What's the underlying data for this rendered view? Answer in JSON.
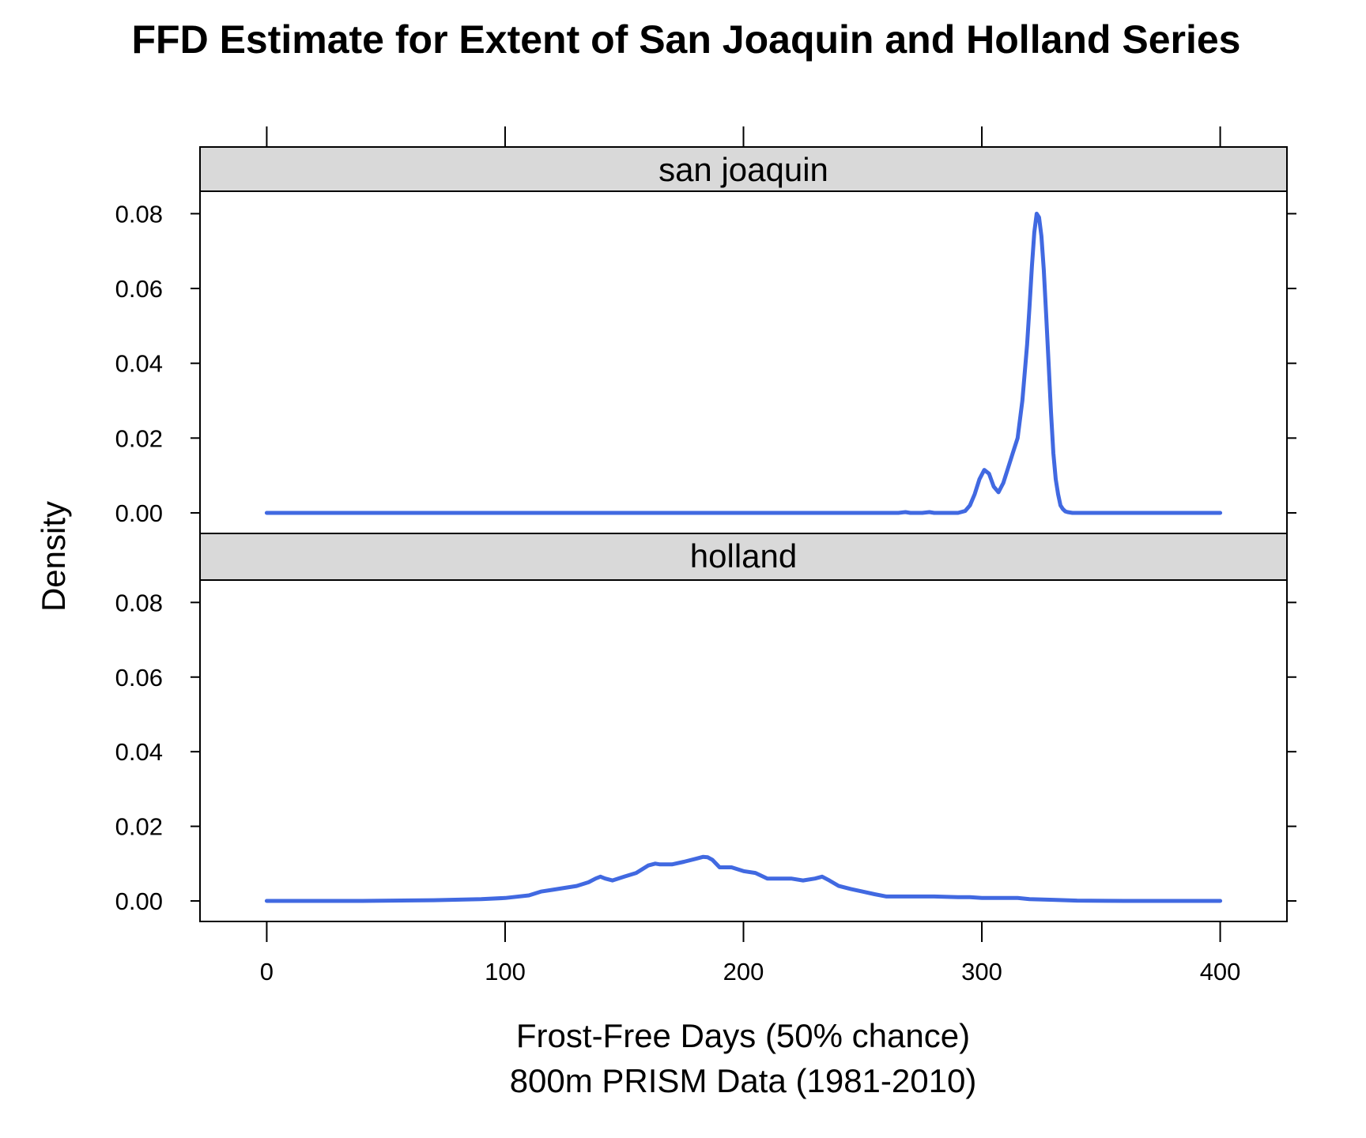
{
  "chart_data": {
    "type": "line",
    "title": "FFD Estimate for Extent of San Joaquin and Holland Series",
    "xlabel_lines": [
      "Frost-Free Days (50% chance)",
      "800m PRISM Data (1981-2010)"
    ],
    "ylabel": "Density",
    "xlim": [
      -28,
      428
    ],
    "ylim": [
      -0.0055,
      0.086
    ],
    "x_ticks": [
      0,
      100,
      200,
      300,
      400
    ],
    "x_tick_labels": [
      "0",
      "100",
      "200",
      "300",
      "400"
    ],
    "y_ticks": [
      0,
      0.02,
      0.04,
      0.06,
      0.08
    ],
    "y_tick_labels": [
      "0.00",
      "0.02",
      "0.04",
      "0.06",
      "0.08"
    ],
    "grid": false,
    "legend": "none",
    "strip_color": "#d9d9d9",
    "line_color": "#4169e1",
    "panels": [
      {
        "name": "san joaquin",
        "x": [
          0,
          50,
          100,
          150,
          200,
          250,
          265,
          268,
          270,
          275,
          278,
          280,
          285,
          290,
          293,
          295,
          297,
          299,
          301,
          303,
          305,
          307,
          309,
          311,
          313,
          315,
          317,
          319,
          320,
          321,
          322,
          323,
          324,
          325,
          326,
          327,
          328,
          329,
          330,
          331,
          332,
          333,
          334,
          335,
          336,
          338,
          340,
          345,
          360,
          400
        ],
        "y": [
          0,
          0,
          0,
          0,
          0,
          0,
          0,
          0.0002,
          0,
          0,
          0.0002,
          0,
          0,
          0,
          0.0005,
          0.002,
          0.005,
          0.009,
          0.0115,
          0.0105,
          0.007,
          0.0055,
          0.008,
          0.012,
          0.016,
          0.02,
          0.03,
          0.045,
          0.055,
          0.066,
          0.075,
          0.08,
          0.079,
          0.074,
          0.065,
          0.053,
          0.04,
          0.027,
          0.016,
          0.009,
          0.005,
          0.002,
          0.001,
          0.0004,
          0.0002,
          0,
          0,
          0,
          0,
          0
        ]
      },
      {
        "name": "holland",
        "x": [
          0,
          40,
          70,
          90,
          100,
          110,
          115,
          120,
          125,
          130,
          135,
          138,
          140,
          142,
          145,
          150,
          155,
          160,
          163,
          165,
          170,
          175,
          180,
          183,
          185,
          187,
          190,
          195,
          200,
          205,
          210,
          215,
          220,
          225,
          230,
          233,
          236,
          240,
          245,
          250,
          255,
          260,
          265,
          270,
          280,
          290,
          295,
          300,
          310,
          315,
          320,
          330,
          340,
          360,
          380,
          400
        ],
        "y": [
          0,
          0,
          0.0002,
          0.0005,
          0.0008,
          0.0015,
          0.0025,
          0.003,
          0.0035,
          0.004,
          0.005,
          0.006,
          0.0065,
          0.006,
          0.0055,
          0.0065,
          0.0075,
          0.0095,
          0.01,
          0.0098,
          0.0098,
          0.0105,
          0.0113,
          0.0118,
          0.0117,
          0.011,
          0.009,
          0.009,
          0.008,
          0.0075,
          0.006,
          0.006,
          0.006,
          0.0055,
          0.006,
          0.0065,
          0.0055,
          0.004,
          0.0032,
          0.0025,
          0.0018,
          0.0012,
          0.0012,
          0.0012,
          0.0012,
          0.001,
          0.001,
          0.0008,
          0.0008,
          0.0008,
          0.0005,
          0.0003,
          0.0001,
          0,
          0,
          0
        ]
      }
    ]
  }
}
